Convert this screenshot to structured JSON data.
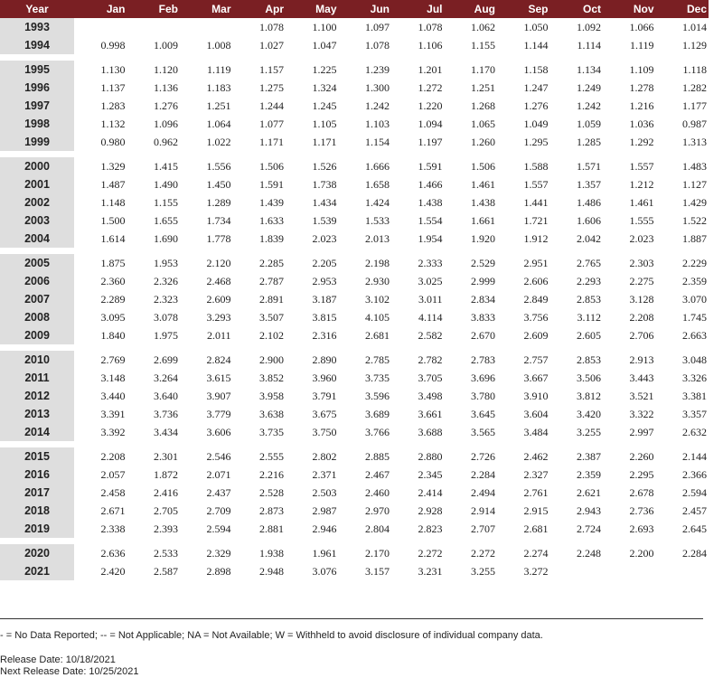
{
  "headers": [
    "Year",
    "Jan",
    "Feb",
    "Mar",
    "Apr",
    "May",
    "Jun",
    "Jul",
    "Aug",
    "Sep",
    "Oct",
    "Nov",
    "Dec"
  ],
  "groups": [
    [
      [
        "1993",
        "",
        "",
        "",
        "1.078",
        "1.100",
        "1.097",
        "1.078",
        "1.062",
        "1.050",
        "1.092",
        "1.066",
        "1.014"
      ],
      [
        "1994",
        "0.998",
        "1.009",
        "1.008",
        "1.027",
        "1.047",
        "1.078",
        "1.106",
        "1.155",
        "1.144",
        "1.114",
        "1.119",
        "1.129"
      ]
    ],
    [
      [
        "1995",
        "1.130",
        "1.120",
        "1.119",
        "1.157",
        "1.225",
        "1.239",
        "1.201",
        "1.170",
        "1.158",
        "1.134",
        "1.109",
        "1.118"
      ],
      [
        "1996",
        "1.137",
        "1.136",
        "1.183",
        "1.275",
        "1.324",
        "1.300",
        "1.272",
        "1.251",
        "1.247",
        "1.249",
        "1.278",
        "1.282"
      ],
      [
        "1997",
        "1.283",
        "1.276",
        "1.251",
        "1.244",
        "1.245",
        "1.242",
        "1.220",
        "1.268",
        "1.276",
        "1.242",
        "1.216",
        "1.177"
      ],
      [
        "1998",
        "1.132",
        "1.096",
        "1.064",
        "1.077",
        "1.105",
        "1.103",
        "1.094",
        "1.065",
        "1.049",
        "1.059",
        "1.036",
        "0.987"
      ],
      [
        "1999",
        "0.980",
        "0.962",
        "1.022",
        "1.171",
        "1.171",
        "1.154",
        "1.197",
        "1.260",
        "1.295",
        "1.285",
        "1.292",
        "1.313"
      ]
    ],
    [
      [
        "2000",
        "1.329",
        "1.415",
        "1.556",
        "1.506",
        "1.526",
        "1.666",
        "1.591",
        "1.506",
        "1.588",
        "1.571",
        "1.557",
        "1.483"
      ],
      [
        "2001",
        "1.487",
        "1.490",
        "1.450",
        "1.591",
        "1.738",
        "1.658",
        "1.466",
        "1.461",
        "1.557",
        "1.357",
        "1.212",
        "1.127"
      ],
      [
        "2002",
        "1.148",
        "1.155",
        "1.289",
        "1.439",
        "1.434",
        "1.424",
        "1.438",
        "1.438",
        "1.441",
        "1.486",
        "1.461",
        "1.429"
      ],
      [
        "2003",
        "1.500",
        "1.655",
        "1.734",
        "1.633",
        "1.539",
        "1.533",
        "1.554",
        "1.661",
        "1.721",
        "1.606",
        "1.555",
        "1.522"
      ],
      [
        "2004",
        "1.614",
        "1.690",
        "1.778",
        "1.839",
        "2.023",
        "2.013",
        "1.954",
        "1.920",
        "1.912",
        "2.042",
        "2.023",
        "1.887"
      ]
    ],
    [
      [
        "2005",
        "1.875",
        "1.953",
        "2.120",
        "2.285",
        "2.205",
        "2.198",
        "2.333",
        "2.529",
        "2.951",
        "2.765",
        "2.303",
        "2.229"
      ],
      [
        "2006",
        "2.360",
        "2.326",
        "2.468",
        "2.787",
        "2.953",
        "2.930",
        "3.025",
        "2.999",
        "2.606",
        "2.293",
        "2.275",
        "2.359"
      ],
      [
        "2007",
        "2.289",
        "2.323",
        "2.609",
        "2.891",
        "3.187",
        "3.102",
        "3.011",
        "2.834",
        "2.849",
        "2.853",
        "3.128",
        "3.070"
      ],
      [
        "2008",
        "3.095",
        "3.078",
        "3.293",
        "3.507",
        "3.815",
        "4.105",
        "4.114",
        "3.833",
        "3.756",
        "3.112",
        "2.208",
        "1.745"
      ],
      [
        "2009",
        "1.840",
        "1.975",
        "2.011",
        "2.102",
        "2.316",
        "2.681",
        "2.582",
        "2.670",
        "2.609",
        "2.605",
        "2.706",
        "2.663"
      ]
    ],
    [
      [
        "2010",
        "2.769",
        "2.699",
        "2.824",
        "2.900",
        "2.890",
        "2.785",
        "2.782",
        "2.783",
        "2.757",
        "2.853",
        "2.913",
        "3.048"
      ],
      [
        "2011",
        "3.148",
        "3.264",
        "3.615",
        "3.852",
        "3.960",
        "3.735",
        "3.705",
        "3.696",
        "3.667",
        "3.506",
        "3.443",
        "3.326"
      ],
      [
        "2012",
        "3.440",
        "3.640",
        "3.907",
        "3.958",
        "3.791",
        "3.596",
        "3.498",
        "3.780",
        "3.910",
        "3.812",
        "3.521",
        "3.381"
      ],
      [
        "2013",
        "3.391",
        "3.736",
        "3.779",
        "3.638",
        "3.675",
        "3.689",
        "3.661",
        "3.645",
        "3.604",
        "3.420",
        "3.322",
        "3.357"
      ],
      [
        "2014",
        "3.392",
        "3.434",
        "3.606",
        "3.735",
        "3.750",
        "3.766",
        "3.688",
        "3.565",
        "3.484",
        "3.255",
        "2.997",
        "2.632"
      ]
    ],
    [
      [
        "2015",
        "2.208",
        "2.301",
        "2.546",
        "2.555",
        "2.802",
        "2.885",
        "2.880",
        "2.726",
        "2.462",
        "2.387",
        "2.260",
        "2.144"
      ],
      [
        "2016",
        "2.057",
        "1.872",
        "2.071",
        "2.216",
        "2.371",
        "2.467",
        "2.345",
        "2.284",
        "2.327",
        "2.359",
        "2.295",
        "2.366"
      ],
      [
        "2017",
        "2.458",
        "2.416",
        "2.437",
        "2.528",
        "2.503",
        "2.460",
        "2.414",
        "2.494",
        "2.761",
        "2.621",
        "2.678",
        "2.594"
      ],
      [
        "2018",
        "2.671",
        "2.705",
        "2.709",
        "2.873",
        "2.987",
        "2.970",
        "2.928",
        "2.914",
        "2.915",
        "2.943",
        "2.736",
        "2.457"
      ],
      [
        "2019",
        "2.338",
        "2.393",
        "2.594",
        "2.881",
        "2.946",
        "2.804",
        "2.823",
        "2.707",
        "2.681",
        "2.724",
        "2.693",
        "2.645"
      ]
    ],
    [
      [
        "2020",
        "2.636",
        "2.533",
        "2.329",
        "1.938",
        "1.961",
        "2.170",
        "2.272",
        "2.272",
        "2.274",
        "2.248",
        "2.200",
        "2.284"
      ],
      [
        "2021",
        "2.420",
        "2.587",
        "2.898",
        "2.948",
        "3.076",
        "3.157",
        "3.231",
        "3.255",
        "3.272",
        "",
        "",
        ""
      ]
    ]
  ],
  "footer": {
    "legend": "- = No Data Reported;  -- = Not Applicable;  NA = Not Available;  W = Withheld to avoid disclosure of individual company data.",
    "release": "Release Date: 10/18/2021",
    "next_release": "Next Release Date: 10/25/2021"
  }
}
